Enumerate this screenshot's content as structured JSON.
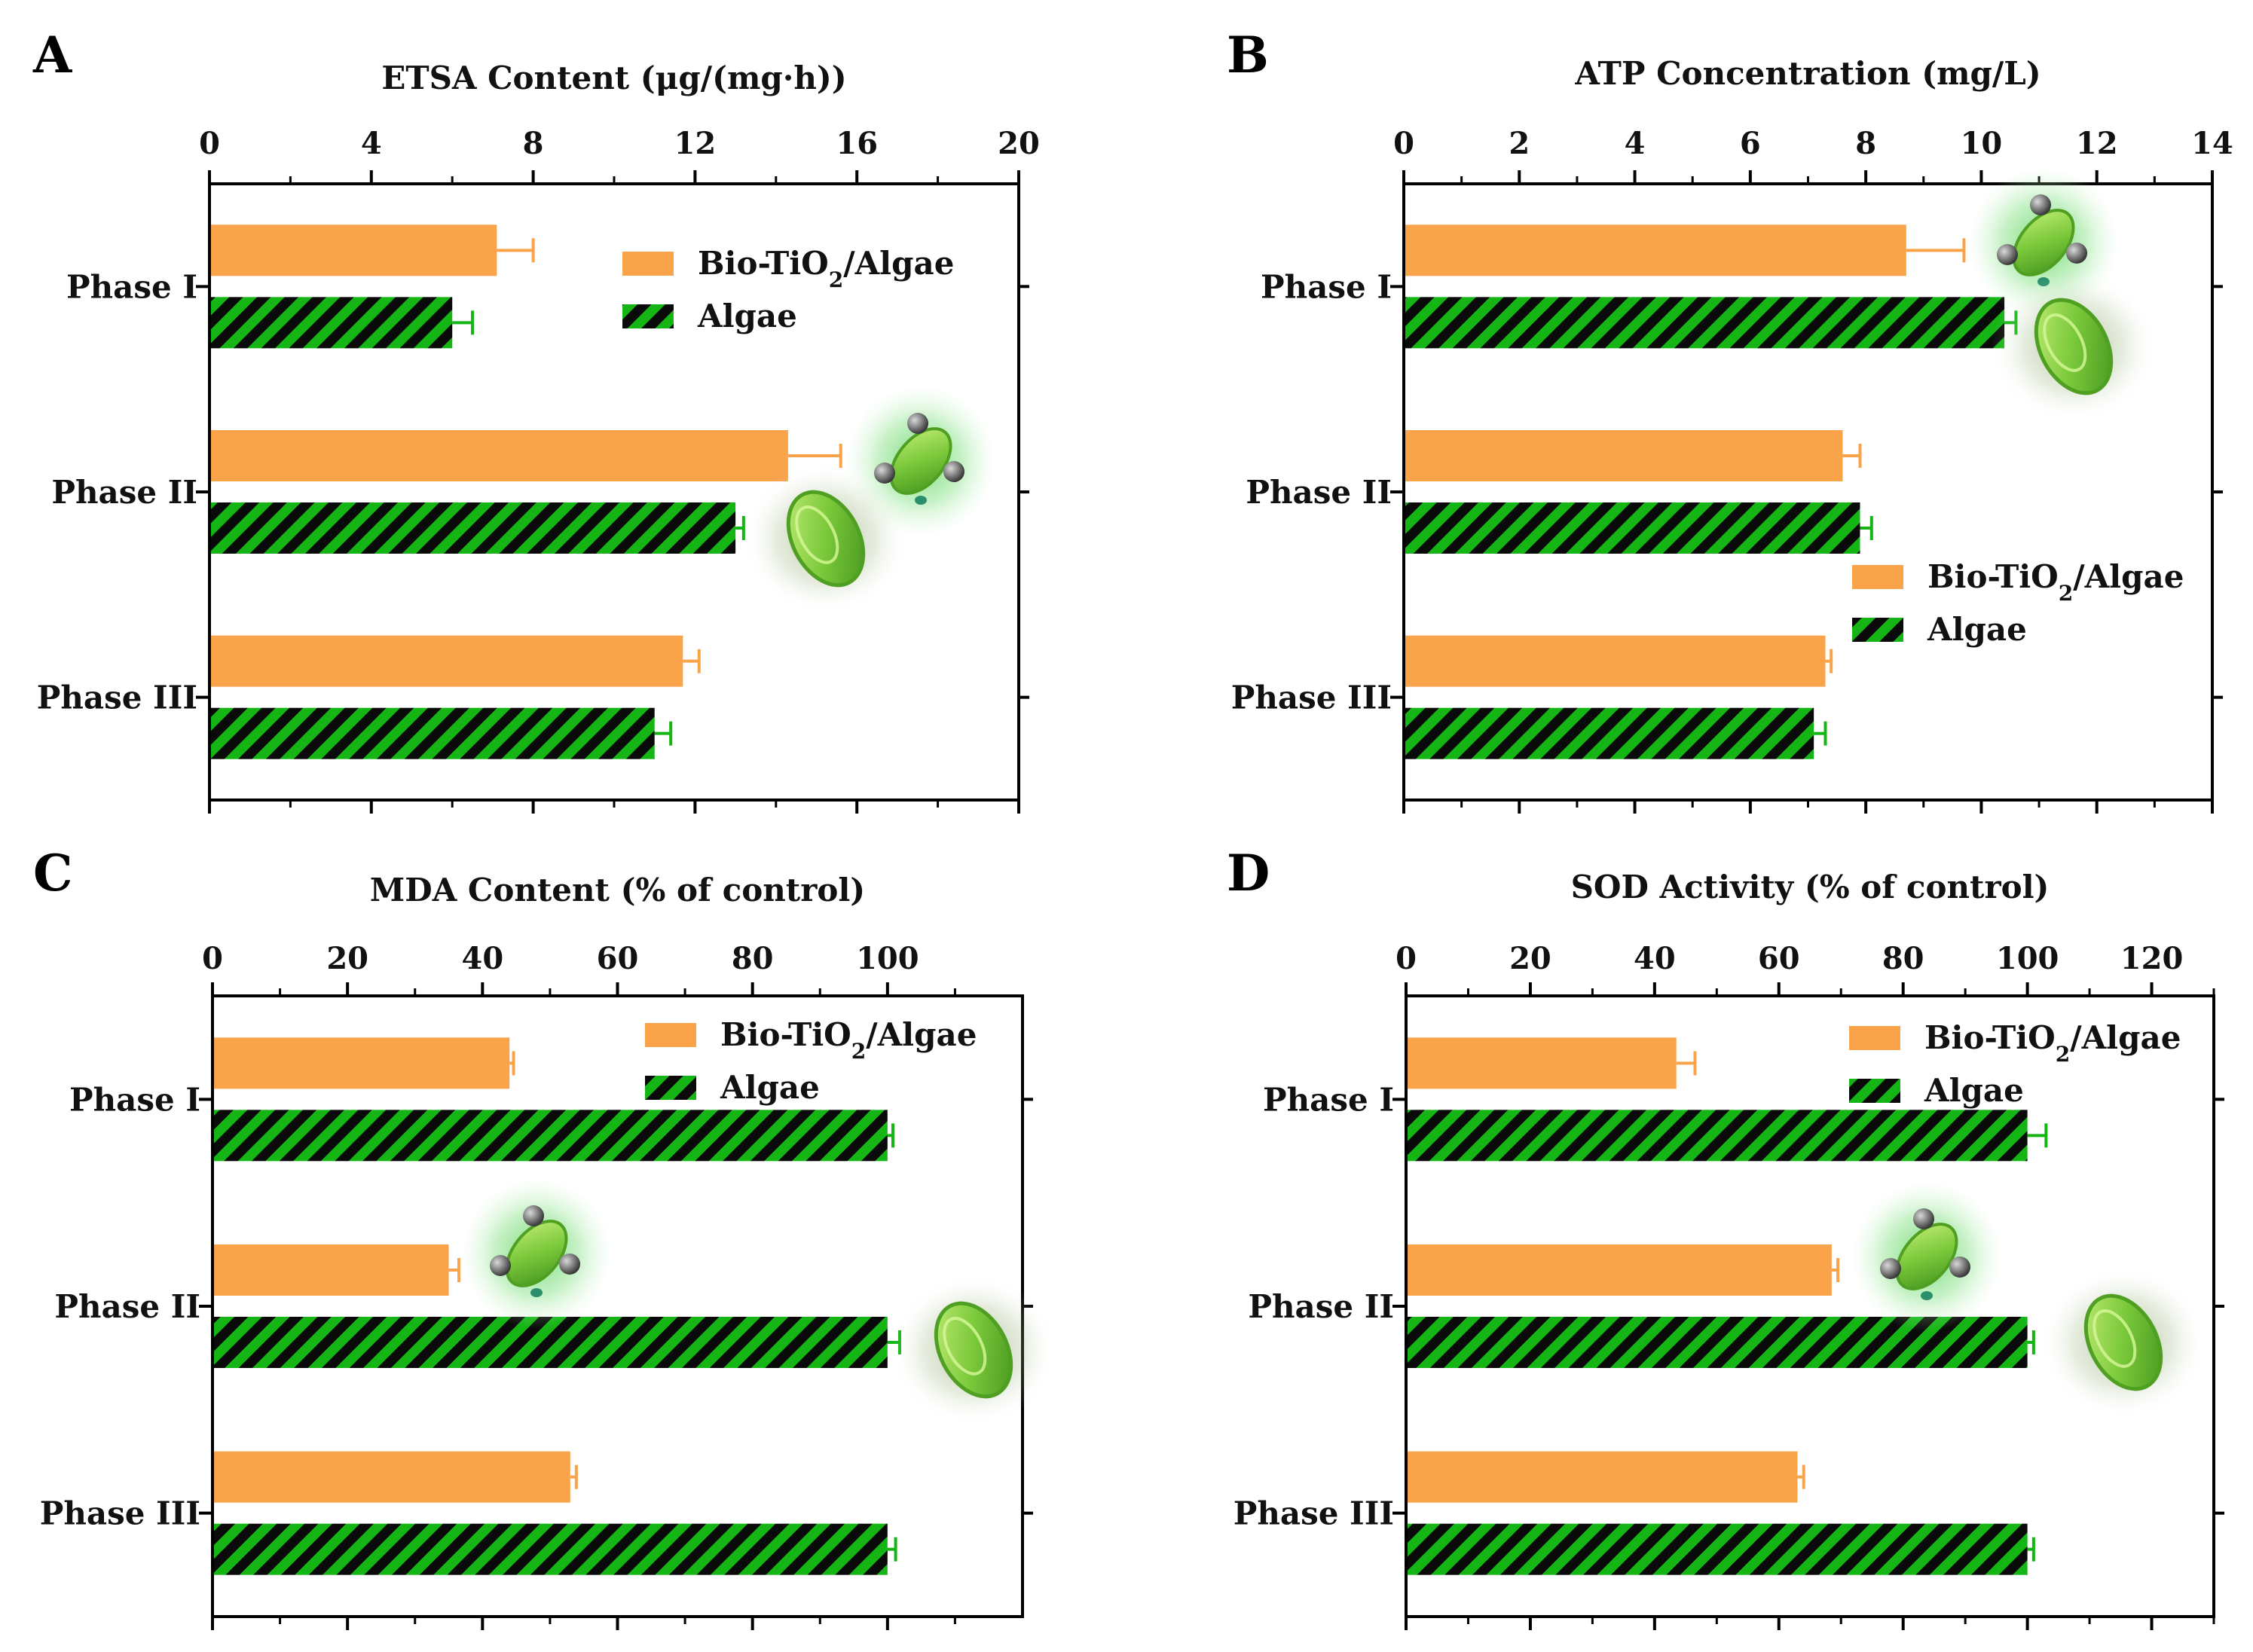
{
  "colors": {
    "bio": "#F9A34B",
    "algae_stripe": "#14B514",
    "algae_dark": "#0a0a0a",
    "error_bio": "#F9A34B",
    "error_algae": "#14B514"
  },
  "legend": {
    "bio_prefix": "Bio-TiO",
    "bio_sub": "2",
    "bio_suffix": "/Algae",
    "algae": "Algae"
  },
  "icons": [
    "algae-cell-icon",
    "tio2-algae-cell-icon"
  ],
  "chart_data": [
    {
      "id": "A",
      "type": "bar",
      "orientation": "horizontal",
      "title": "ETSA Content (μg/(mg·h))",
      "categories": [
        "Phase I",
        "Phase II",
        "Phase III"
      ],
      "xlim": [
        0,
        20
      ],
      "ticks": [
        0,
        4,
        8,
        12,
        16,
        20
      ],
      "tick_labels": [
        "0",
        "4",
        "8",
        "12",
        "16",
        "20"
      ],
      "legend_position": "top-right",
      "series": [
        {
          "name": "Bio-TiO2/Algae",
          "values": [
            7.1,
            14.3,
            11.7
          ],
          "errors": [
            0.9,
            1.3,
            0.4
          ]
        },
        {
          "name": "Algae",
          "values": [
            6.0,
            13.0,
            11.0
          ],
          "errors": [
            0.5,
            0.2,
            0.4
          ]
        }
      ]
    },
    {
      "id": "B",
      "type": "bar",
      "orientation": "horizontal",
      "title": "ATP Concentration (mg/L)",
      "categories": [
        "Phase I",
        "Phase II",
        "Phase III"
      ],
      "xlim": [
        0,
        14
      ],
      "ticks": [
        0,
        2,
        4,
        6,
        8,
        10,
        12,
        14
      ],
      "tick_labels": [
        "0",
        "2",
        "4",
        "6",
        "8",
        "10",
        "12",
        "14"
      ],
      "legend_position": "right",
      "series": [
        {
          "name": "Bio-TiO2/Algae",
          "values": [
            8.7,
            7.6,
            7.3
          ],
          "errors": [
            1.0,
            0.3,
            0.1
          ]
        },
        {
          "name": "Algae",
          "values": [
            10.4,
            7.9,
            7.1
          ],
          "errors": [
            0.2,
            0.2,
            0.2
          ]
        }
      ]
    },
    {
      "id": "C",
      "type": "bar",
      "orientation": "horizontal",
      "title": "MDA Content (% of control)",
      "categories": [
        "Phase I",
        "Phase II",
        "Phase III"
      ],
      "xlim": [
        0,
        120
      ],
      "ticks": [
        0,
        20,
        40,
        60,
        80,
        100
      ],
      "tick_labels": [
        "0",
        "20",
        "40",
        "60",
        "80",
        "100"
      ],
      "legend_position": "top-right",
      "series": [
        {
          "name": "Bio-TiO2/Algae",
          "values": [
            44,
            35,
            53
          ],
          "errors": [
            0.6,
            1.5,
            0.9
          ]
        },
        {
          "name": "Algae",
          "values": [
            100,
            100,
            100
          ],
          "errors": [
            0.8,
            1.8,
            1.2
          ]
        }
      ]
    },
    {
      "id": "D",
      "type": "bar",
      "orientation": "horizontal",
      "title": "SOD Activity (% of control)",
      "categories": [
        "Phase I",
        "Phase II",
        "Phase III"
      ],
      "xlim": [
        0,
        130
      ],
      "ticks": [
        0,
        20,
        40,
        60,
        80,
        100,
        120
      ],
      "tick_labels": [
        "0",
        "20",
        "40",
        "60",
        "80",
        "100",
        "120"
      ],
      "legend_position": "top-right",
      "series": [
        {
          "name": "Bio-TiO2/Algae",
          "values": [
            43.5,
            68.5,
            63
          ],
          "errors": [
            3.0,
            1.0,
            1.0
          ]
        },
        {
          "name": "Algae",
          "values": [
            100,
            100,
            100
          ],
          "errors": [
            3.0,
            1.0,
            1.0
          ]
        }
      ]
    }
  ]
}
